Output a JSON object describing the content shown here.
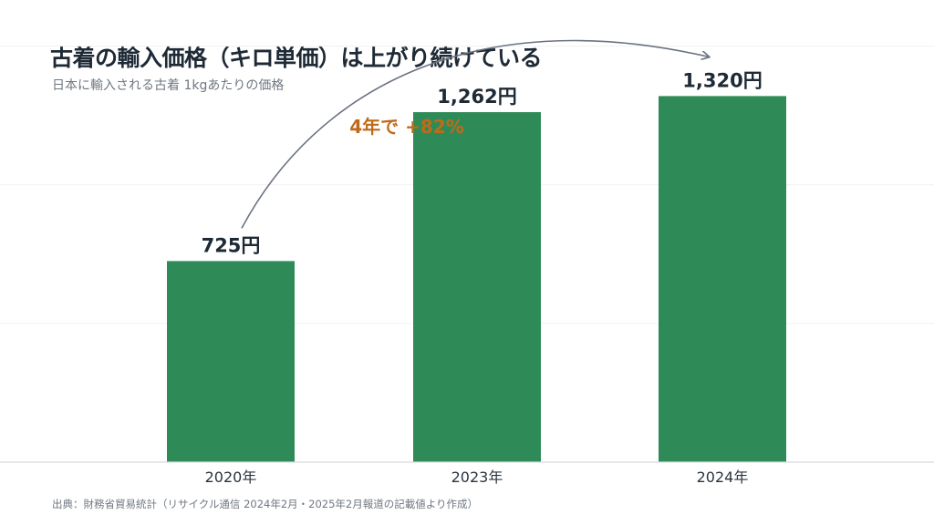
{
  "header": {
    "title": "古着の輸入価格（キロ単価）は上がり続けている",
    "subtitle": "日本に輸入される古着 1kgあたりの価格"
  },
  "footer": {
    "source": "出典：財務省貿易統計（リサイクル通信 2024年2月・2025年2月報道の記載値より作成）"
  },
  "colors": {
    "bar": "#2e8b57",
    "annotation": "#bf6a1a",
    "arrow": "#6b7380",
    "text": "#1e2a36"
  },
  "chart_data": {
    "type": "bar",
    "categories": [
      "2020年",
      "2023年",
      "2024年"
    ],
    "values": [
      725,
      1262,
      1320
    ],
    "value_labels": [
      "725円",
      "1,262円",
      "1,320円"
    ],
    "ylim": [
      0,
      1650
    ],
    "grid": true,
    "annotation": {
      "text": "4年で +82%",
      "from_category": "2020年",
      "to_category": "2024年"
    }
  }
}
